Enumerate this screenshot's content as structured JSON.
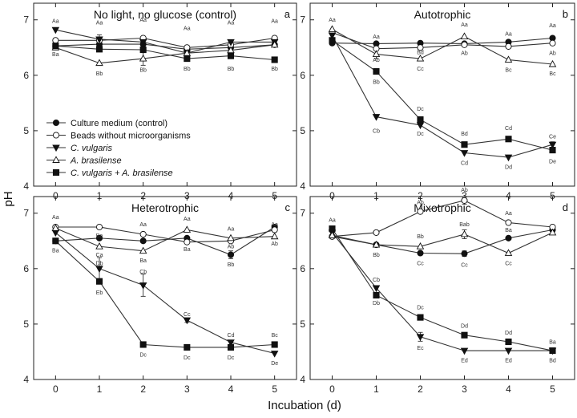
{
  "figure": {
    "ylabel": "pH",
    "xlabel": "Incubation  (d)"
  },
  "legend": [
    {
      "series": "medium",
      "label": "Culture medium (control)",
      "italic": false
    },
    {
      "series": "beads",
      "label": "Beads without microorganisms",
      "italic": false
    },
    {
      "series": "cv",
      "label": "C. vulgaris",
      "italic": true
    },
    {
      "series": "ab",
      "label": "A. brasilense",
      "italic": true
    },
    {
      "series": "cvab",
      "label": "C. vulgaris + A. brasilense",
      "italic": true
    }
  ],
  "series_styles": {
    "medium": {
      "marker": "circle",
      "fill": "#111111"
    },
    "beads": {
      "marker": "circle",
      "fill": "#ffffff"
    },
    "cv": {
      "marker": "triangle-down",
      "fill": "#111111"
    },
    "ab": {
      "marker": "triangle-up",
      "fill": "#ffffff"
    },
    "cvab": {
      "marker": "square",
      "fill": "#111111"
    }
  },
  "chart_data": [
    {
      "type": "line",
      "panel": "a",
      "title": "No light, no glucose (control)",
      "letter": "a",
      "xlabel": "Incubation  (d)",
      "ylabel": "pH",
      "x": [
        0,
        1,
        2,
        3,
        4,
        5
      ],
      "xlim": [
        -0.5,
        5.5
      ],
      "ylim": [
        4,
        7.3
      ],
      "yticks": [
        4,
        5,
        6,
        7
      ],
      "series": [
        {
          "key": "medium",
          "name": "Culture medium (control)",
          "values": [
            6.53,
            6.56,
            6.56,
            6.47,
            6.5,
            6.55
          ]
        },
        {
          "key": "beads",
          "name": "Beads without microorganisms",
          "values": [
            6.63,
            6.63,
            6.67,
            6.5,
            6.55,
            6.67
          ]
        },
        {
          "key": "cv",
          "name": "C. vulgaris",
          "values": [
            6.82,
            6.65,
            6.6,
            6.4,
            6.6,
            6.6
          ]
        },
        {
          "key": "ab",
          "name": "A. brasilense",
          "values": [
            6.5,
            6.22,
            6.3,
            6.4,
            6.45,
            6.55
          ]
        },
        {
          "key": "cvab",
          "name": "C. vulgaris + A. brasilense",
          "values": [
            6.53,
            6.47,
            6.46,
            6.3,
            6.35,
            6.28
          ]
        }
      ],
      "annotations": [
        {
          "x": 0,
          "y": 6.98,
          "text": "Aa"
        },
        {
          "x": 0,
          "y": 6.38,
          "text": "Ba"
        },
        {
          "x": 1,
          "y": 6.95,
          "text": "Aa"
        },
        {
          "x": 1,
          "y": 6.03,
          "text": "Bb"
        },
        {
          "x": 2,
          "y": 7.0,
          "text": "Aa"
        },
        {
          "x": 2,
          "y": 6.1,
          "text": "Bb"
        },
        {
          "x": 3,
          "y": 6.85,
          "text": "Aa"
        },
        {
          "x": 3,
          "y": 6.12,
          "text": "Bb"
        },
        {
          "x": 4,
          "y": 6.95,
          "text": "Aa"
        },
        {
          "x": 4,
          "y": 6.12,
          "text": "Bb"
        },
        {
          "x": 5,
          "y": 6.98,
          "text": "Aa"
        },
        {
          "x": 5,
          "y": 6.12,
          "text": "Bb"
        }
      ],
      "error_bars": [
        {
          "series": "beads",
          "x": 1,
          "plus": 0.1,
          "minus": 0.1
        },
        {
          "series": "ab",
          "x": 2,
          "plus": 0.12,
          "minus": 0.12
        },
        {
          "series": "cvab",
          "x": 4,
          "plus": 0.05,
          "minus": 0.05
        }
      ]
    },
    {
      "type": "line",
      "panel": "b",
      "title": "Autotrophic",
      "letter": "b",
      "xlabel": "Incubation  (d)",
      "ylabel": "pH",
      "x": [
        0,
        1,
        2,
        3,
        4,
        5
      ],
      "xlim": [
        -0.5,
        5.5
      ],
      "ylim": [
        4,
        7.3
      ],
      "yticks": [
        4,
        5,
        6,
        7
      ],
      "series": [
        {
          "key": "medium",
          "name": "Culture medium (control)",
          "values": [
            6.58,
            6.57,
            6.58,
            6.57,
            6.6,
            6.67
          ]
        },
        {
          "key": "beads",
          "name": "Beads without microorganisms",
          "values": [
            6.77,
            6.48,
            6.5,
            6.55,
            6.52,
            6.58
          ]
        },
        {
          "key": "cv",
          "name": "C. vulgaris",
          "values": [
            6.72,
            5.25,
            5.1,
            4.6,
            4.52,
            4.75
          ]
        },
        {
          "key": "ab",
          "name": "A. brasilense",
          "values": [
            6.83,
            6.38,
            6.3,
            6.7,
            6.28,
            6.2
          ]
        },
        {
          "key": "cvab",
          "name": "C. vulgaris + A. brasilense",
          "values": [
            6.63,
            6.07,
            5.2,
            4.75,
            4.85,
            4.65
          ]
        }
      ],
      "annotations": [
        {
          "x": 0,
          "y": 7.0,
          "text": "Aa"
        },
        {
          "x": 1,
          "y": 6.7,
          "text": "Aa"
        },
        {
          "x": 1,
          "y": 6.28,
          "text": "Ab"
        },
        {
          "x": 1,
          "y": 5.88,
          "text": "Bb"
        },
        {
          "x": 1,
          "y": 5.0,
          "text": "Cb"
        },
        {
          "x": 2,
          "y": 6.42,
          "text": "Bd"
        },
        {
          "x": 2,
          "y": 6.12,
          "text": "Cc"
        },
        {
          "x": 2,
          "y": 5.4,
          "text": "Dc"
        },
        {
          "x": 2,
          "y": 4.95,
          "text": "Dc"
        },
        {
          "x": 3,
          "y": 6.92,
          "text": "Aa"
        },
        {
          "x": 3,
          "y": 6.4,
          "text": "Ab"
        },
        {
          "x": 3,
          "y": 4.95,
          "text": "Bd"
        },
        {
          "x": 3,
          "y": 4.42,
          "text": "Cd"
        },
        {
          "x": 4,
          "y": 6.75,
          "text": "Aa"
        },
        {
          "x": 4,
          "y": 6.1,
          "text": "Bc"
        },
        {
          "x": 4,
          "y": 5.05,
          "text": "Cd"
        },
        {
          "x": 4,
          "y": 4.35,
          "text": "Dd"
        },
        {
          "x": 5,
          "y": 6.9,
          "text": "Aa"
        },
        {
          "x": 5,
          "y": 6.4,
          "text": "Ab"
        },
        {
          "x": 5,
          "y": 6.03,
          "text": "Bc"
        },
        {
          "x": 5,
          "y": 4.9,
          "text": "Ce"
        },
        {
          "x": 5,
          "y": 4.45,
          "text": "De"
        }
      ],
      "error_bars": [
        {
          "series": "ab",
          "x": 1,
          "plus": 0.08,
          "minus": 0.08
        },
        {
          "series": "cvab",
          "x": 2,
          "plus": 0.05,
          "minus": 0.05
        },
        {
          "series": "cv",
          "x": 5,
          "plus": 0.05,
          "minus": 0.05
        }
      ]
    },
    {
      "type": "line",
      "panel": "c",
      "title": "Heterotrophic",
      "letter": "c",
      "xlabel": "Incubation  (d)",
      "ylabel": "pH",
      "x": [
        0,
        1,
        2,
        3,
        4,
        5
      ],
      "xlim": [
        -0.5,
        5.5
      ],
      "ylim": [
        4,
        7.3
      ],
      "yticks": [
        4,
        5,
        6,
        7
      ],
      "series": [
        {
          "key": "medium",
          "name": "Culture medium (control)",
          "values": [
            6.5,
            6.55,
            6.5,
            6.55,
            6.25,
            6.75
          ]
        },
        {
          "key": "beads",
          "name": "Beads without microorganisms",
          "values": [
            6.75,
            6.75,
            6.62,
            6.48,
            6.5,
            6.7
          ]
        },
        {
          "key": "cv",
          "name": "C. vulgaris",
          "values": [
            6.65,
            6.0,
            5.7,
            5.07,
            4.67,
            4.47
          ]
        },
        {
          "key": "ab",
          "name": "A. brasilense",
          "values": [
            6.73,
            6.4,
            6.32,
            6.7,
            6.55,
            6.58
          ]
        },
        {
          "key": "cvab",
          "name": "C. vulgaris + A. brasilense",
          "values": [
            6.5,
            5.77,
            4.63,
            4.58,
            4.58,
            4.63
          ]
        }
      ],
      "annotations": [
        {
          "x": 0,
          "y": 6.93,
          "text": "Aa"
        },
        {
          "x": 0,
          "y": 6.33,
          "text": "Ba"
        },
        {
          "x": 1,
          "y": 6.6,
          "text": "Ba"
        },
        {
          "x": 1,
          "y": 6.25,
          "text": "Ca"
        },
        {
          "x": 1,
          "y": 6.1,
          "text": "Db"
        },
        {
          "x": 1,
          "y": 5.57,
          "text": "Eb"
        },
        {
          "x": 2,
          "y": 6.8,
          "text": "Aa"
        },
        {
          "x": 2,
          "y": 6.15,
          "text": "Ba"
        },
        {
          "x": 2,
          "y": 5.95,
          "text": "Cb"
        },
        {
          "x": 2,
          "y": 4.45,
          "text": "Dc"
        },
        {
          "x": 3,
          "y": 6.9,
          "text": "Aa"
        },
        {
          "x": 3,
          "y": 6.35,
          "text": "Ba"
        },
        {
          "x": 3,
          "y": 5.18,
          "text": "Cc"
        },
        {
          "x": 3,
          "y": 4.4,
          "text": "Dc"
        },
        {
          "x": 4,
          "y": 6.72,
          "text": "Aa"
        },
        {
          "x": 4,
          "y": 6.4,
          "text": "Ab"
        },
        {
          "x": 4,
          "y": 6.08,
          "text": "Bb"
        },
        {
          "x": 4,
          "y": 4.8,
          "text": "Cd"
        },
        {
          "x": 4,
          "y": 4.4,
          "text": "Dc"
        },
        {
          "x": 5,
          "y": 6.8,
          "text": "Aa"
        },
        {
          "x": 5,
          "y": 6.45,
          "text": "Ab"
        },
        {
          "x": 5,
          "y": 4.8,
          "text": "Bc"
        },
        {
          "x": 5,
          "y": 4.3,
          "text": "De"
        }
      ],
      "error_bars": [
        {
          "series": "cv",
          "x": 1,
          "plus": 0.2,
          "minus": 0.2
        },
        {
          "series": "cv",
          "x": 2,
          "plus": 0.2,
          "minus": 0.2
        },
        {
          "series": "medium",
          "x": 4,
          "plus": 0.07,
          "minus": 0.07
        },
        {
          "series": "cv",
          "x": 3,
          "plus": 0.04,
          "minus": 0.04
        }
      ]
    },
    {
      "type": "line",
      "panel": "d",
      "title": "Mixotrophic",
      "letter": "d",
      "xlabel": "Incubation  (d)",
      "ylabel": "pH",
      "x": [
        0,
        1,
        2,
        3,
        4,
        5
      ],
      "xlim": [
        -0.5,
        5.5
      ],
      "ylim": [
        4,
        7.3
      ],
      "yticks": [
        4,
        5,
        6,
        7
      ],
      "series": [
        {
          "key": "medium",
          "name": "Culture medium (control)",
          "values": [
            6.58,
            6.43,
            6.28,
            6.27,
            6.55,
            6.7
          ]
        },
        {
          "key": "beads",
          "name": "Beads without microorganisms",
          "values": [
            6.58,
            6.65,
            7.03,
            7.23,
            6.83,
            6.75
          ]
        },
        {
          "key": "cv",
          "name": "C. vulgaris",
          "values": [
            6.65,
            5.65,
            4.77,
            4.52,
            4.52,
            4.52
          ]
        },
        {
          "key": "ab",
          "name": "A. brasilense",
          "values": [
            6.6,
            6.43,
            6.4,
            6.62,
            6.28,
            6.65
          ]
        },
        {
          "key": "cvab",
          "name": "C. vulgaris + A. brasilense",
          "values": [
            6.72,
            5.52,
            5.12,
            4.8,
            4.68,
            4.52
          ]
        }
      ],
      "annotations": [
        {
          "x": 0,
          "y": 6.88,
          "text": "Aa"
        },
        {
          "x": 1,
          "y": 6.25,
          "text": "Bb"
        },
        {
          "x": 1,
          "y": 5.8,
          "text": "Cb"
        },
        {
          "x": 1,
          "y": 5.38,
          "text": "Db"
        },
        {
          "x": 2,
          "y": 7.2,
          "text": "Ab"
        },
        {
          "x": 2,
          "y": 6.58,
          "text": "Bb"
        },
        {
          "x": 2,
          "y": 6.1,
          "text": "Cc"
        },
        {
          "x": 2,
          "y": 5.3,
          "text": "Dc"
        },
        {
          "x": 2,
          "y": 4.57,
          "text": "Ec"
        },
        {
          "x": 3,
          "y": 7.42,
          "text": "Ab"
        },
        {
          "x": 3,
          "y": 6.8,
          "text": "Bab"
        },
        {
          "x": 3,
          "y": 6.07,
          "text": "Cc"
        },
        {
          "x": 3,
          "y": 4.97,
          "text": "Dd"
        },
        {
          "x": 3,
          "y": 4.35,
          "text": "Ed"
        },
        {
          "x": 4,
          "y": 7.0,
          "text": "Aa"
        },
        {
          "x": 4,
          "y": 6.7,
          "text": "Ba"
        },
        {
          "x": 4,
          "y": 6.1,
          "text": "Cc"
        },
        {
          "x": 4,
          "y": 4.85,
          "text": "Dd"
        },
        {
          "x": 4,
          "y": 4.35,
          "text": "Ed"
        },
        {
          "x": 5,
          "y": 4.68,
          "text": "Ba"
        },
        {
          "x": 5,
          "y": 4.35,
          "text": "Bd"
        }
      ],
      "error_bars": [
        {
          "series": "beads",
          "x": 3,
          "plus": 0.07,
          "minus": 0.07
        },
        {
          "series": "ab",
          "x": 3,
          "plus": 0.08,
          "minus": 0.08
        },
        {
          "series": "cv",
          "x": 2,
          "plus": 0.08,
          "minus": 0.08
        },
        {
          "series": "medium",
          "x": 3,
          "plus": 0.05,
          "minus": 0.05
        }
      ]
    }
  ]
}
